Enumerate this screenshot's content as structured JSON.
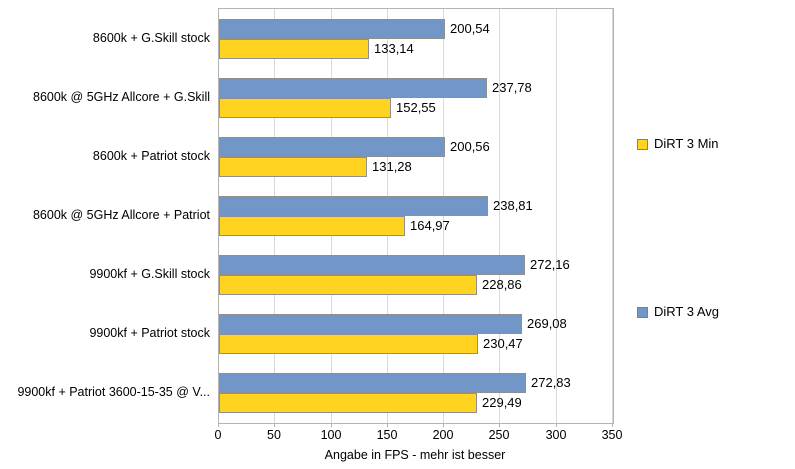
{
  "chart_data": {
    "type": "bar",
    "orientation": "horizontal",
    "title": "",
    "xlabel": "Angabe in FPS - mehr ist besser",
    "ylabel": "",
    "xlim": [
      0,
      350
    ],
    "xticks": [
      0,
      50,
      100,
      150,
      200,
      250,
      300,
      350
    ],
    "grid": true,
    "value_labels": true,
    "decimal_separator": ",",
    "categories": [
      "8600k + G.Skill stock",
      "8600k @ 5GHz Allcore + G.Skill",
      "8600k + Patriot stock",
      "8600k @ 5GHz Allcore + Patriot",
      "9900kf + G.Skill stock",
      "9900kf + Patriot stock",
      "9900kf + Patriot 3600-15-35 @ V..."
    ],
    "series": [
      {
        "name": "DiRT 3 Avg",
        "color": "#7396C8",
        "values": [
          200.54,
          237.78,
          200.56,
          238.81,
          272.16,
          269.08,
          272.83
        ]
      },
      {
        "name": "DiRT 3 Min",
        "color": "#FFD320",
        "values": [
          133.14,
          152.55,
          131.28,
          164.97,
          228.86,
          230.47,
          229.49
        ]
      }
    ],
    "legend": [
      {
        "label": "DiRT 3 Min",
        "series": "DiRT 3 Min",
        "position": "right-upper"
      },
      {
        "label": "DiRT 3 Avg",
        "series": "DiRT 3 Avg",
        "position": "right-lower"
      }
    ]
  }
}
